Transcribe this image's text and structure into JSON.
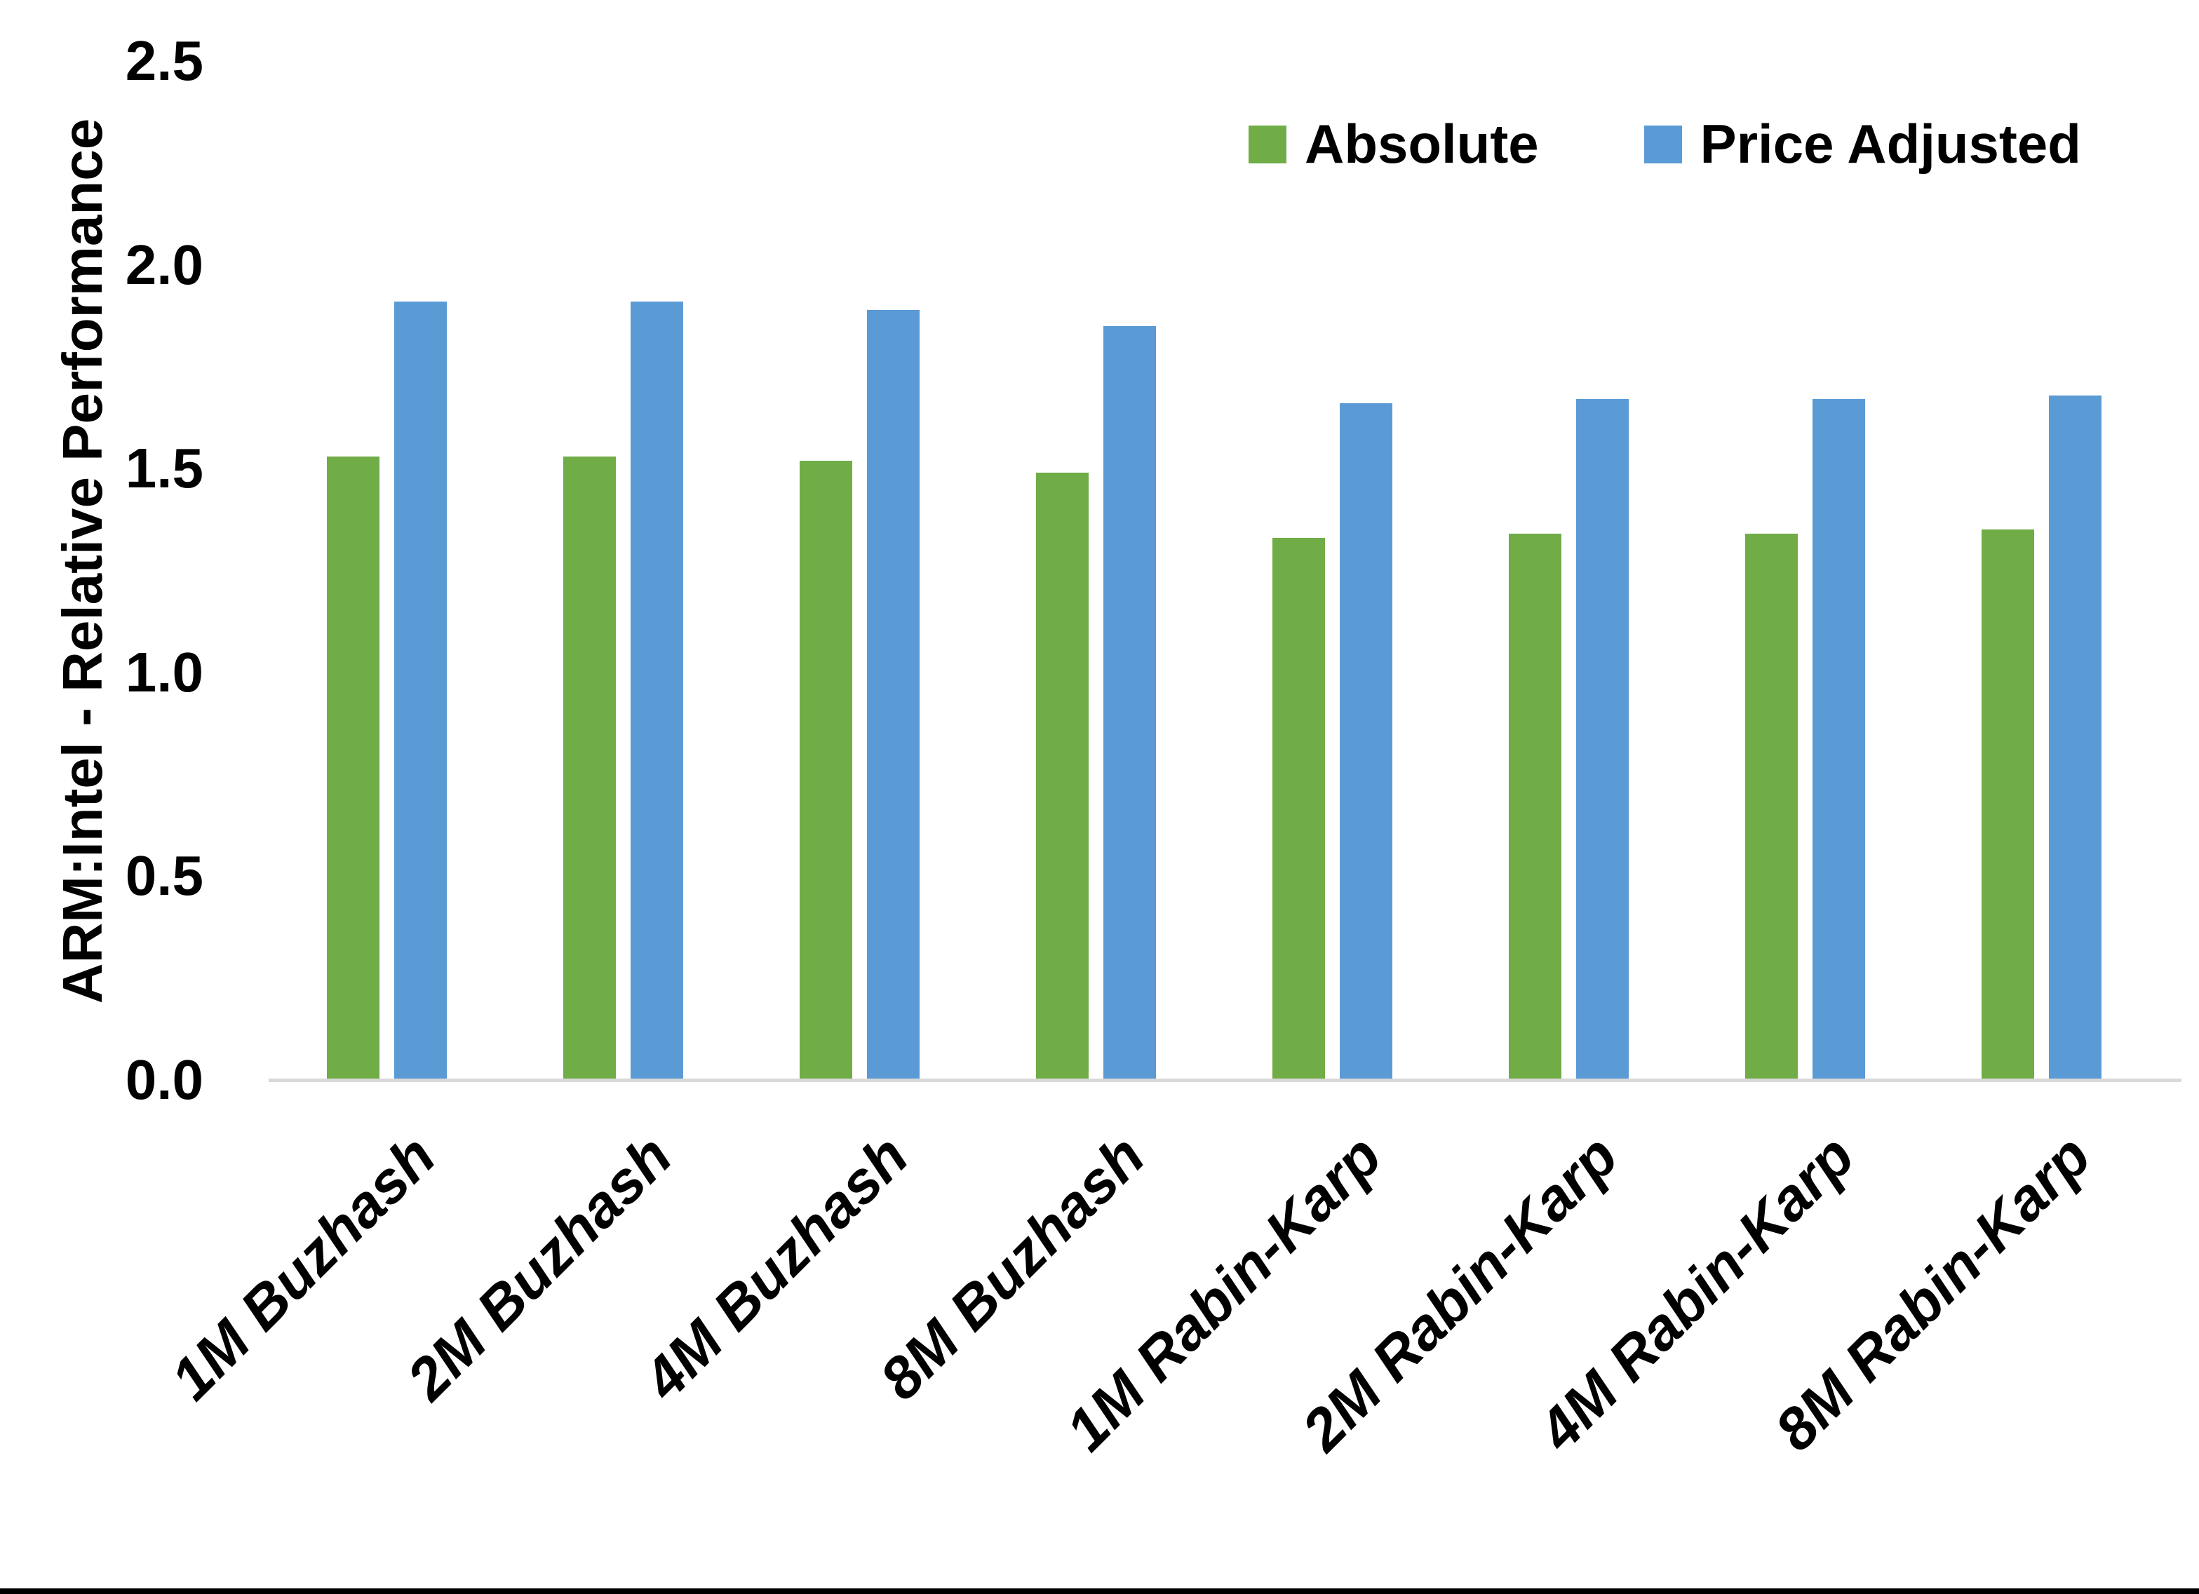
{
  "y_axis": {
    "title": "ARM:Intel - Relative Performance",
    "tick_labels": [
      "0.0",
      "0.5",
      "1.0",
      "1.5",
      "2.0",
      "2.5"
    ]
  },
  "legend": {
    "items": [
      {
        "label": "Absolute",
        "color": "#70AD47"
      },
      {
        "label": "Price Adjusted",
        "color": "#5B9BD5"
      }
    ]
  },
  "colors": {
    "absolute_green": "#70AD47",
    "price_adjusted_blue": "#5B9BD5",
    "axis_line_gray": "#D9D9D9",
    "text_black": "#000000",
    "background": "#FFFFFF"
  },
  "chart_data": {
    "type": "bar",
    "title": "",
    "xlabel": "",
    "ylabel": "ARM:Intel - Relative Performance",
    "categories": [
      "1M Buzhash",
      "2M Buzhash",
      "4M Buzhash",
      "8M Buzhash",
      "1M Rabin-Karp",
      "2M Rabin-Karp",
      "4M Rabin-Karp",
      "8M Rabin-Karp"
    ],
    "series": [
      {
        "name": "Absolute",
        "color": "#70AD47",
        "values": [
          1.53,
          1.53,
          1.52,
          1.49,
          1.33,
          1.34,
          1.34,
          1.35
        ]
      },
      {
        "name": "Price Adjusted",
        "color": "#5B9BD5",
        "values": [
          1.91,
          1.91,
          1.89,
          1.85,
          1.66,
          1.67,
          1.67,
          1.68
        ]
      }
    ],
    "ylim": [
      0,
      2.5
    ],
    "yticks": [
      0.0,
      0.5,
      1.0,
      1.5,
      2.0,
      2.5
    ],
    "grid": false,
    "legend_position": "top-right",
    "x_tick_rotation_deg": 45
  }
}
